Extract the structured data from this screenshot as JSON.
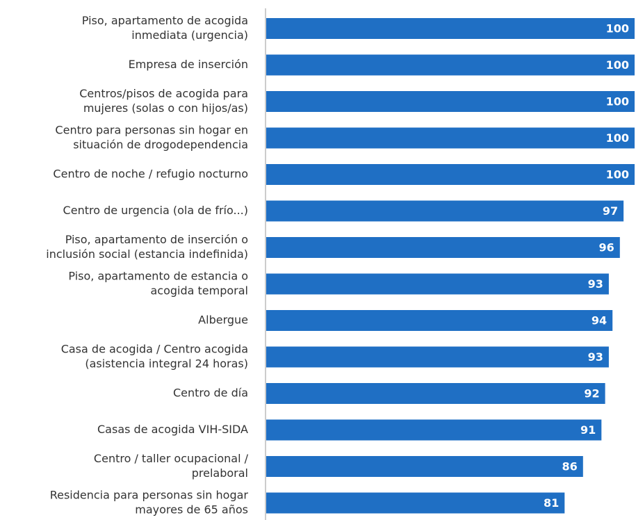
{
  "chart_data": {
    "type": "bar",
    "orientation": "horizontal",
    "color": "#1f6fc4",
    "categories": [
      [
        "Piso, apartamento de acogida",
        "inmediata (urgencia)"
      ],
      [
        "Empresa de inserción"
      ],
      [
        "Centros/pisos de acogida para",
        "mujeres (solas o con hijos/as)"
      ],
      [
        "Centro para personas sin hogar en",
        "situación de drogodependencia"
      ],
      [
        "Centro de noche / refugio nocturno"
      ],
      [
        "Centro de urgencia (ola de frío...)"
      ],
      [
        "Piso, apartamento de inserción o",
        "inclusión social (estancia indefinida)"
      ],
      [
        "Piso, apartamento de estancia o",
        "acogida temporal"
      ],
      [
        "Albergue"
      ],
      [
        "Casa de acogida / Centro acogida",
        "(asistencia integral 24 horas)"
      ],
      [
        "Centro de día"
      ],
      [
        "Casas de acogida VIH-SIDA"
      ],
      [
        "Centro / taller ocupacional /",
        "prelaboral"
      ],
      [
        "Residencia para personas sin hogar",
        "mayores de 65 años"
      ]
    ],
    "values": [
      100,
      100,
      100,
      100,
      100,
      97,
      96,
      93,
      94,
      93,
      92,
      91,
      86,
      81
    ],
    "xlim": [
      0,
      100
    ]
  }
}
